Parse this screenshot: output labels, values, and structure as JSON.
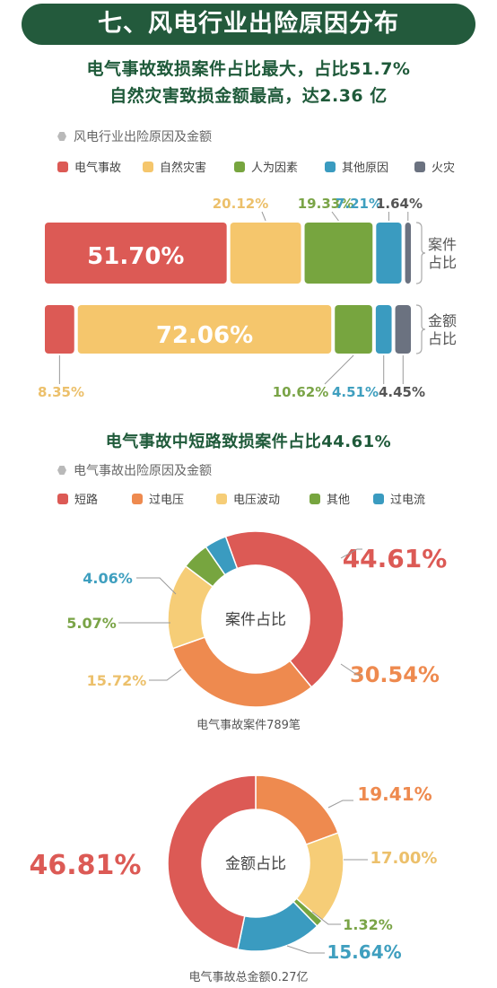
{
  "banner": "七、风电行业出险原因分布",
  "headline1": "电气事故致损案件占比最大，占比51.7%",
  "headline2": "自然灾害致损金额最高，达2.36 亿",
  "subhead1": "风电行业出险原因及金额",
  "headline3": "电气事故中短路致损案件占比44.61%",
  "subhead2": "电气事故出险原因及金额",
  "colors": {
    "red": "#dc5a55",
    "yellow": "#f5c66c",
    "green": "#77a53f",
    "blue": "#3a9bc0",
    "gray": "#6b7280",
    "orange": "#ee8a4f",
    "lightyellow": "#f6cd77",
    "darkgreen": "#235a3c",
    "label_yellow": "#ecc06b",
    "label_green": "#7aa447",
    "label_blue": "#3f9fbf"
  },
  "chart_data": [
    {
      "type": "bar",
      "stacked": true,
      "orientation": "horizontal",
      "legend_labels": [
        "电气事故",
        "自然灾害",
        "人为因素",
        "其他原因",
        "火灾"
      ],
      "categories": [
        "案件\n占比",
        "金额\n占比"
      ],
      "series": [
        {
          "name": "电气事故",
          "values": [
            51.7,
            8.35
          ]
        },
        {
          "name": "自然灾害",
          "values": [
            20.12,
            72.06
          ]
        },
        {
          "name": "人为因素",
          "values": [
            19.33,
            10.62
          ]
        },
        {
          "name": "其他原因",
          "values": [
            7.21,
            4.51
          ]
        },
        {
          "name": "火灾",
          "values": [
            1.64,
            4.45
          ]
        }
      ],
      "value_labels": {
        "row1": [
          "51.70%",
          "20.12%",
          "19.33%",
          "7.21%",
          "1.64%"
        ],
        "row2": [
          "8.35%",
          "72.06%",
          "10.62%",
          "4.51%",
          "4.45%"
        ]
      },
      "row_labels": [
        [
          "案件",
          "占比"
        ],
        [
          "金额",
          "占比"
        ]
      ]
    },
    {
      "type": "pie",
      "donut": true,
      "center_label": "案件占比",
      "caption": "电气事故案件789笔",
      "legend_labels": [
        "短路",
        "过电压",
        "电压波动",
        "其他",
        "过电流"
      ],
      "slices": [
        {
          "name": "短路",
          "value": 44.61,
          "label": "44.61%"
        },
        {
          "name": "过电压",
          "value": 30.54,
          "label": "30.54%"
        },
        {
          "name": "电压波动",
          "value": 15.72,
          "label": "15.72%"
        },
        {
          "name": "其他",
          "value": 5.07,
          "label": "5.07%"
        },
        {
          "name": "过电流",
          "value": 4.06,
          "label": "4.06%"
        }
      ]
    },
    {
      "type": "pie",
      "donut": true,
      "center_label": "金额占比",
      "caption": "电气事故总金额0.27亿",
      "slices": [
        {
          "name": "过电压",
          "value": 19.41,
          "label": "19.41%"
        },
        {
          "name": "电压波动",
          "value": 17.0,
          "label": "17.00%"
        },
        {
          "name": "其他",
          "value": 1.32,
          "label": "1.32%"
        },
        {
          "name": "过电流",
          "value": 15.64,
          "label": "15.64%"
        },
        {
          "name": "短路",
          "value": 46.81,
          "label": "46.81%"
        }
      ]
    }
  ]
}
